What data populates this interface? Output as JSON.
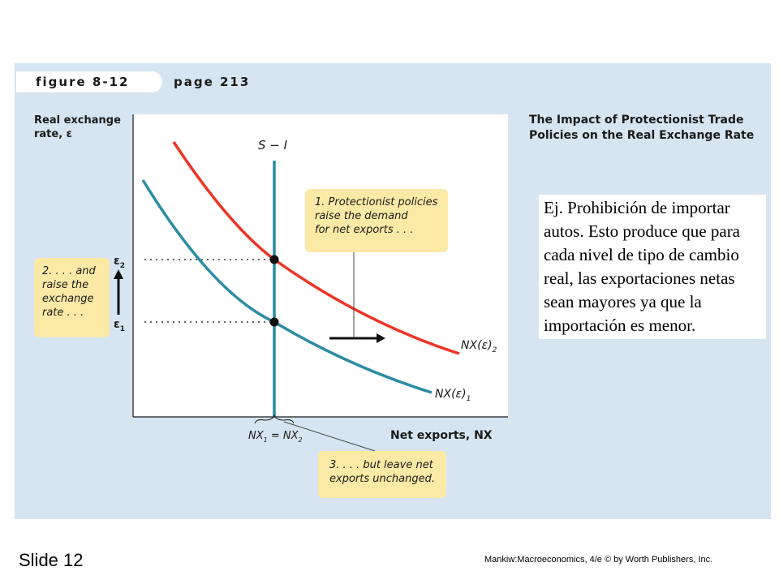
{
  "figure": {
    "label": "figure 8-12",
    "page": "page 213",
    "title": "The Impact of Protectionist Trade Policies on the Real Exchange Rate"
  },
  "axes": {
    "ylabel": "Real exchange rate, ε",
    "xlabel": "Net exports, NX",
    "supply_label": "S − I",
    "y_tick_high": "ε",
    "y_tick_high_sub": "2",
    "y_tick_low": "ε",
    "y_tick_low_sub": "1",
    "x_tick": "NX",
    "x_tick_sub1": "1",
    "x_tick_mid": " = NX",
    "x_tick_sub2": "2"
  },
  "curves": {
    "nx2_label": "NX(ε)",
    "nx2_sub": "2",
    "nx1_label": "NX(ε)",
    "nx1_sub": "1",
    "nx2_color": "#ee3424",
    "nx1_color": "#2b8ca6",
    "supply_color": "#2b8ca6"
  },
  "callouts": {
    "c1_line1": "1. Protectionist policies",
    "c1_line2": "raise the demand",
    "c1_line3": "for net exports . . .",
    "c2_line1": "2. . . . and",
    "c2_line2": "raise the",
    "c2_line3": "exchange",
    "c2_line4": "rate . . .",
    "c3_line1": "3. . . . but leave net",
    "c3_line2": "exports unchanged."
  },
  "note": "Ej. Prohibición de importar autos. Esto produce que para cada nivel de tipo de cambio real, las exportaciones netas sean mayores ya que la importación es menor.",
  "footer": {
    "slide": "Slide 12",
    "credit": "Mankiw:Macroeconomics, 4/e © by Worth Publishers, Inc."
  }
}
